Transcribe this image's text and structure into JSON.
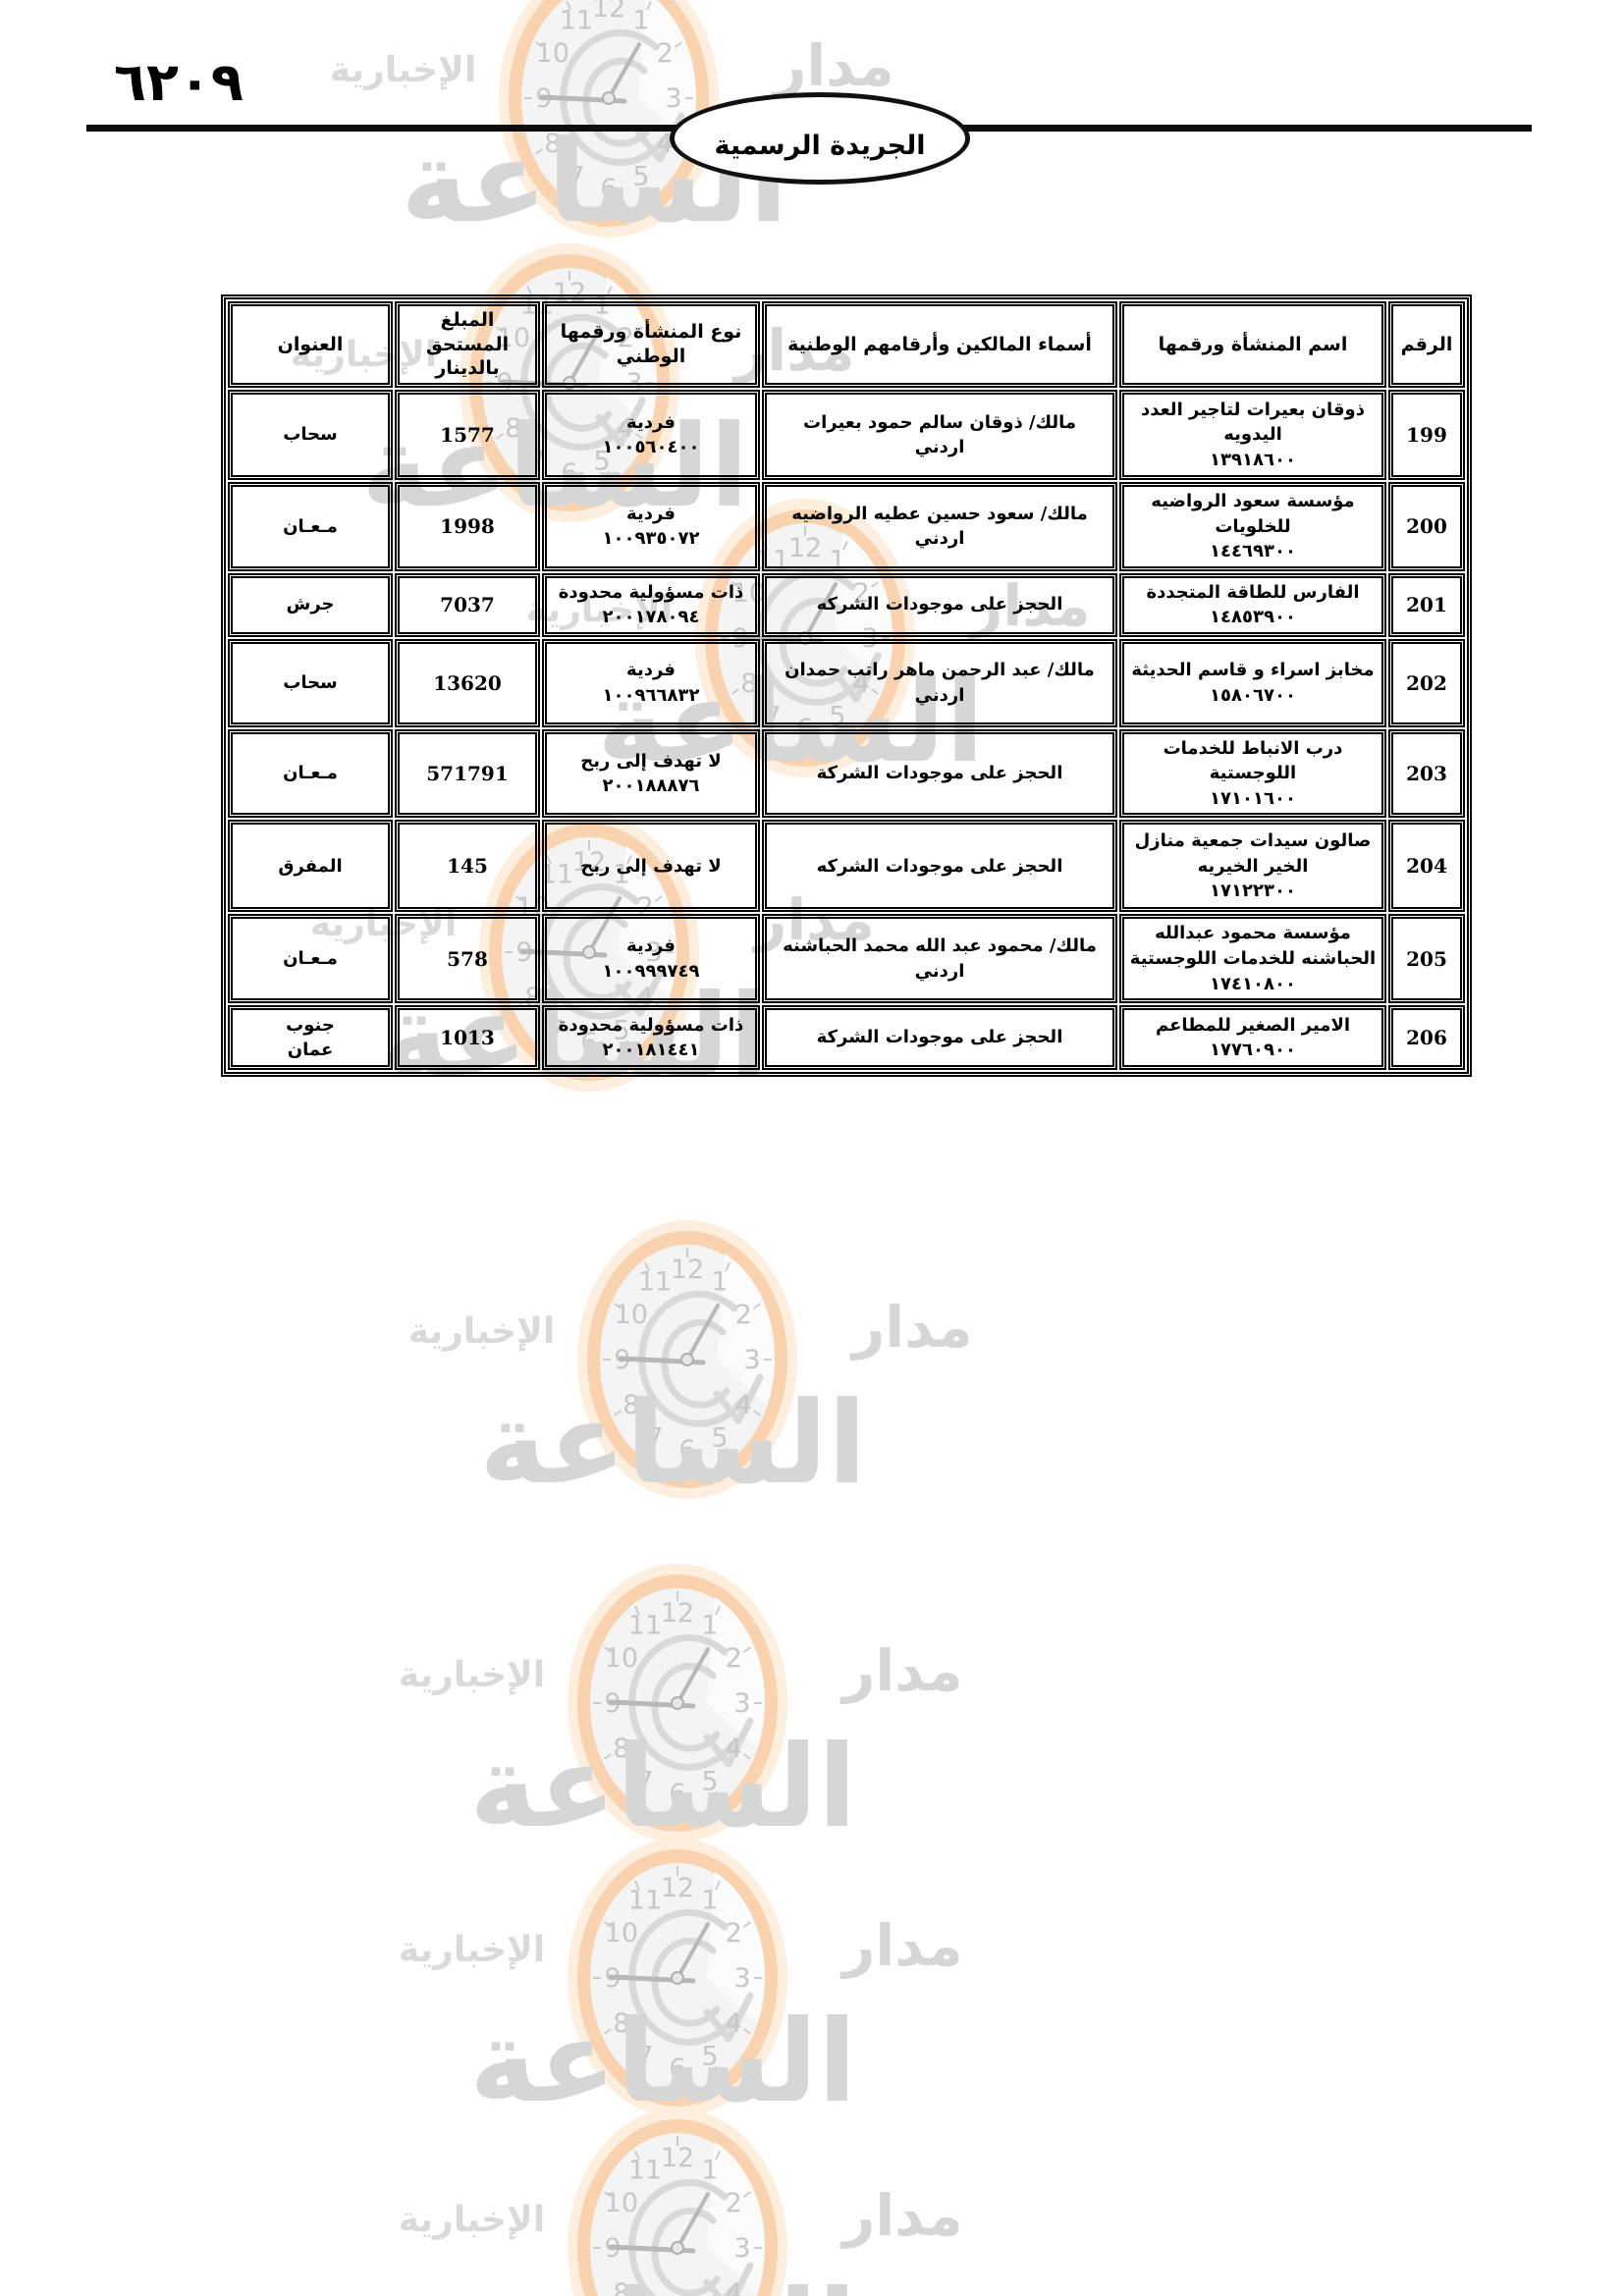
{
  "header": {
    "page_number": "٦٢٠٩",
    "gazette_title": "الجريدة الرسمية"
  },
  "watermark": {
    "brand_right": "مدار",
    "brand_left": "الإخبارية",
    "brand_big": "الساعة",
    "clock_numerals": [
      "1",
      "2",
      "3",
      "4",
      "5",
      "6",
      "7",
      "8",
      "9",
      "10",
      "11",
      "12"
    ]
  },
  "table": {
    "headers": [
      "الرقم",
      "اسم المنشأة ورقمها",
      "أسماء المالكين وأرقامهم الوطنية",
      "نوع المنشأة ورقمها\nالوطني",
      "المبلغ المستحق\nبالدينار",
      "العنوان"
    ],
    "rows": [
      {
        "no": "199",
        "name": "ذوقان بعيرات لتاجير العدد\nاليدويه\n١٣٩١٨٦٠٠",
        "owners": "مالك/ ذوقان سالم حمود بعيرات\nاردني",
        "type": "فردية\n١٠٠٥٦٠٤٠٠",
        "amount": "1577",
        "address": "سحاب"
      },
      {
        "no": "200",
        "name": "مؤسسة سعود الرواضيه\nللخلويات\n١٤٤٦٩٣٠٠",
        "owners": "مالك/ سعود حسين عطيه الرواضيه\nاردني",
        "type": "فردية\n١٠٠٩٣٥٠٧٢",
        "amount": "1998",
        "address": "مـعـان"
      },
      {
        "no": "201",
        "name": "الفارس للطاقة المتجددة\n١٤٨٥٣٩٠٠",
        "owners": "الحجز على موجودات الشركه",
        "type": "ذات مسؤولية محدودة\n٢٠٠١٧٨٠٩٤",
        "amount": "7037",
        "address": "جرش"
      },
      {
        "no": "202",
        "name": "مخابز اسراء و قاسم الحديثة\n١٥٨٠٦٧٠٠",
        "owners": "مالك/ عبد الرحمن ماهر راتب حمدان\nاردني",
        "type": "فردية\n١٠٠٩٦٦٨٣٢",
        "amount": "13620",
        "address": "سحاب"
      },
      {
        "no": "203",
        "name": "درب الانباط للخدمات\nاللوجستية\n١٧١٠١٦٠٠",
        "owners": "الحجز على موجودات الشركة",
        "type": "لا تهدف إلى ربح\n٢٠٠١٨٨٨٧٦",
        "amount": "571791",
        "address": "مـعـان"
      },
      {
        "no": "204",
        "name": "صالون سيدات جمعية منازل\nالخير الخيريه\n١٧١٢٢٣٠٠",
        "owners": "الحجز على موجودات الشركه",
        "type": "لا تهدف إلى ربح",
        "amount": "145",
        "address": "المفرق"
      },
      {
        "no": "205",
        "name": "مؤسسة محمود عبدالله\nالحباشنه للخدمات اللوجستية\n١٧٤١٠٨٠٠",
        "owners": "مالك/ محمود عبد الله محمد الحباشنه\nاردني",
        "type": "فردية\n١٠٠٩٩٩٧٤٩",
        "amount": "578",
        "address": "مـعـان"
      },
      {
        "no": "206",
        "name": "الامير الصغير للمطاعم\n١٧٧٦٠٩٠٠",
        "owners": "الحجز على موجودات الشركة",
        "type": "ذات مسؤولية محدودة\n٢٠٠١٨١٤٤١",
        "amount": "1013",
        "address": "جنوب\nعمان"
      }
    ]
  }
}
